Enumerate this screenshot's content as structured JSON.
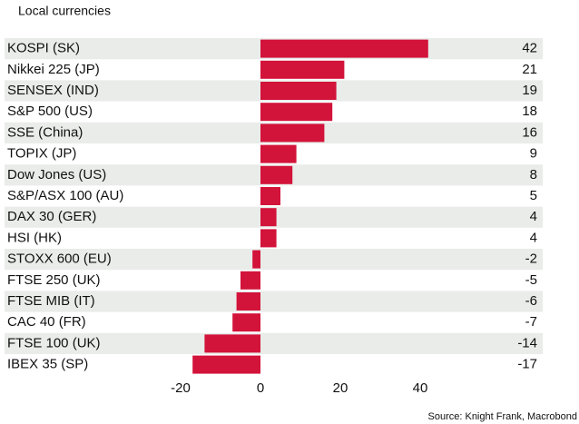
{
  "chart_data": {
    "type": "bar",
    "orientation": "horizontal",
    "title": "Local currencies",
    "source": "Source: Knight Frank, Macrobond",
    "categories": [
      "KOSPI (SK)",
      "Nikkei 225 (JP)",
      "SENSEX (IND)",
      "S&P 500 (US)",
      "SSE (China)",
      "TOPIX (JP)",
      "Dow Jones (US)",
      "S&P/ASX 100 (AU)",
      "DAX 30 (GER)",
      "HSI (HK)",
      "STOXX 600 (EU)",
      "FTSE 250 (UK)",
      "FTSE MIB (IT)",
      "CAC 40 (FR)",
      "FTSE 100 (UK)",
      "IBEX 35 (SP)"
    ],
    "values": [
      42,
      21,
      19,
      18,
      16,
      9,
      8,
      5,
      4,
      4,
      -2,
      -5,
      -6,
      -7,
      -14,
      -17
    ],
    "color": "#d2133a",
    "xlim": [
      -20,
      40
    ],
    "xticks": [
      -20,
      0,
      20,
      40
    ],
    "grid": false
  }
}
